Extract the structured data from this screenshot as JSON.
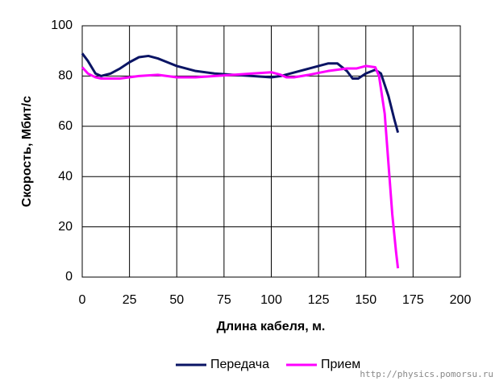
{
  "chart_data": {
    "type": "line",
    "x_label": "Длина кабеля, м.",
    "y_label": "Скорость, Мбит/с",
    "xlim": [
      0,
      200
    ],
    "xticks": [
      0,
      25,
      50,
      75,
      100,
      125,
      150,
      175,
      200
    ],
    "ylim": [
      0,
      100
    ],
    "yticks": [
      0,
      20,
      40,
      60,
      80,
      100
    ],
    "grid": true,
    "legend": "bottom",
    "series": [
      {
        "name": "Передача",
        "color": "#0a1464",
        "x": [
          0,
          3,
          7,
          10,
          15,
          20,
          25,
          30,
          35,
          40,
          45,
          50,
          55,
          60,
          70,
          80,
          90,
          100,
          105,
          110,
          120,
          125,
          130,
          135,
          140,
          143,
          146,
          150,
          155,
          158,
          162,
          165,
          167
        ],
        "values": [
          89,
          86,
          81,
          80,
          81,
          83,
          85.5,
          87.5,
          88,
          87,
          85.5,
          84,
          83,
          82,
          81,
          80.5,
          80,
          79.5,
          80,
          81,
          83,
          84,
          85,
          85,
          82,
          79,
          79,
          81,
          82.5,
          81,
          72,
          63,
          57.5
        ]
      },
      {
        "name": "Прием",
        "color": "#ff00ff",
        "x": [
          0,
          3,
          7,
          10,
          20,
          30,
          40,
          50,
          60,
          70,
          80,
          90,
          100,
          105,
          108,
          112,
          120,
          130,
          140,
          145,
          150,
          155,
          157,
          160,
          162,
          164,
          166,
          167
        ],
        "values": [
          83.5,
          81,
          79.5,
          79,
          79,
          80,
          80.5,
          79.5,
          79.5,
          80,
          80.5,
          81,
          81.5,
          80.5,
          79.5,
          79.5,
          80.5,
          82,
          83,
          83,
          84,
          83.5,
          80,
          65,
          45,
          25,
          10,
          3.5
        ]
      }
    ]
  },
  "watermark": "http://physics.pomorsu.ru"
}
